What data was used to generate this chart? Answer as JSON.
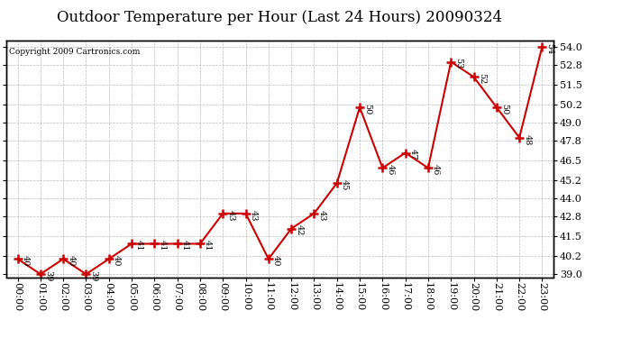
{
  "title": "Outdoor Temperature per Hour (Last 24 Hours) 20090324",
  "copyright": "Copyright 2009 Cartronics.com",
  "hours": [
    "00:00",
    "01:00",
    "02:00",
    "03:00",
    "04:00",
    "05:00",
    "06:00",
    "07:00",
    "08:00",
    "09:00",
    "10:00",
    "11:00",
    "12:00",
    "13:00",
    "14:00",
    "15:00",
    "16:00",
    "17:00",
    "18:00",
    "19:00",
    "20:00",
    "21:00",
    "22:00",
    "23:00"
  ],
  "temperatures": [
    40,
    39,
    40,
    39,
    40,
    41,
    41,
    41,
    41,
    43,
    43,
    40,
    42,
    43,
    45,
    50,
    46,
    47,
    46,
    53,
    52,
    50,
    48,
    54
  ],
  "ylim": [
    38.8,
    54.4
  ],
  "yticks": [
    39.0,
    40.2,
    41.5,
    42.8,
    44.0,
    45.2,
    46.5,
    47.8,
    49.0,
    50.2,
    51.5,
    52.8,
    54.0
  ],
  "line_color": "#cc0000",
  "marker_color": "#cc0000",
  "bg_color": "#ffffff",
  "grid_color": "#bbbbbb",
  "title_fontsize": 12,
  "label_fontsize": 8,
  "annot_fontsize": 7,
  "copyright_fontsize": 6.5
}
